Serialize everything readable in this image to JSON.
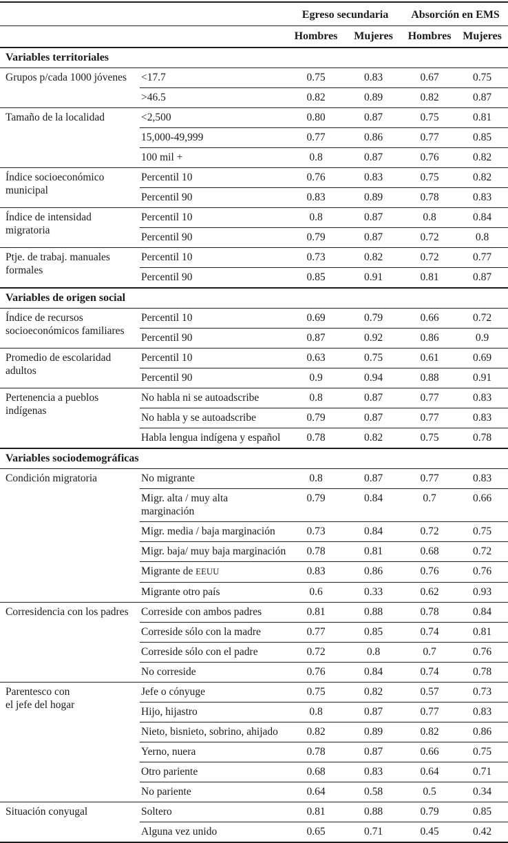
{
  "table": {
    "col_groups": [
      {
        "label": "Egreso secundaria"
      },
      {
        "label": "Absorción en EMS"
      }
    ],
    "sub_headers": [
      "Hombres",
      "Mujeres",
      "Hombres",
      "Mujeres"
    ],
    "sections": [
      {
        "title": "Variables territoriales",
        "groups": [
          {
            "category": "Grupos p/cada 1000 jóvenes",
            "rows": [
              {
                "label": "<17.7",
                "values": [
                  "0.75",
                  "0.83",
                  "0.67",
                  "0.75"
                ]
              },
              {
                "label": ">46.5",
                "values": [
                  "0.82",
                  "0.89",
                  "0.82",
                  "0.87"
                ]
              }
            ]
          },
          {
            "category": "Tamaño de la localidad",
            "rows": [
              {
                "label": "<2,500",
                "values": [
                  "0.80",
                  "0.87",
                  "0.75",
                  "0.81"
                ]
              },
              {
                "label": "15,000-49,999",
                "values": [
                  "0.77",
                  "0.86",
                  "0.77",
                  "0.85"
                ]
              },
              {
                "label": "100 mil +",
                "values": [
                  "0.8",
                  "0.87",
                  "0.76",
                  "0.82"
                ]
              }
            ]
          },
          {
            "category": "Índice socioeconómico\nmunicipal",
            "rows": [
              {
                "label": "Percentil 10",
                "values": [
                  "0.76",
                  "0.83",
                  "0.75",
                  "0.82"
                ]
              },
              {
                "label": "Percentil 90",
                "values": [
                  "0.83",
                  "0.89",
                  "0.78",
                  "0.83"
                ]
              }
            ]
          },
          {
            "category": "Índice de intensidad\nmigratoria",
            "rows": [
              {
                "label": "Percentil 10",
                "values": [
                  "0.8",
                  "0.87",
                  "0.8",
                  "0.84"
                ]
              },
              {
                "label": "Percentil 90",
                "values": [
                  "0.79",
                  "0.87",
                  "0.72",
                  "0.8"
                ]
              }
            ]
          },
          {
            "category": "Ptje. de trabaj. manuales\nformales",
            "rows": [
              {
                "label": "Percentil 10",
                "values": [
                  "0.73",
                  "0.82",
                  "0.72",
                  "0.77"
                ]
              },
              {
                "label": "Percentil 90",
                "values": [
                  "0.85",
                  "0.91",
                  "0.81",
                  "0.87"
                ]
              }
            ]
          }
        ]
      },
      {
        "title": "Variables de origen social",
        "groups": [
          {
            "category": "Índice de recursos\nsocioeconómicos familiares",
            "rows": [
              {
                "label": "Percentil 10",
                "values": [
                  "0.69",
                  "0.79",
                  "0.66",
                  "0.72"
                ]
              },
              {
                "label": "Percentil 90",
                "values": [
                  "0.87",
                  "0.92",
                  "0.86",
                  "0.9"
                ]
              }
            ]
          },
          {
            "category": "Promedio de escolaridad\nadultos",
            "rows": [
              {
                "label": "Percentil 10",
                "values": [
                  "0.63",
                  "0.75",
                  "0.61",
                  "0.69"
                ]
              },
              {
                "label": "Percentil 90",
                "values": [
                  "0.9",
                  "0.94",
                  "0.88",
                  "0.91"
                ]
              }
            ]
          },
          {
            "category": "Pertenencia a pueblos\nindígenas",
            "rows": [
              {
                "label": "No habla ni se autoadscribe",
                "values": [
                  "0.8",
                  "0.87",
                  "0.77",
                  "0.83"
                ]
              },
              {
                "label": "No habla y se autoadscribe",
                "values": [
                  "0.79",
                  "0.87",
                  "0.77",
                  "0.83"
                ]
              },
              {
                "label": "Habla lengua indígena y español",
                "values": [
                  "0.78",
                  "0.82",
                  "0.75",
                  "0.78"
                ]
              }
            ]
          }
        ]
      },
      {
        "title": "Variables sociodemográficas",
        "groups": [
          {
            "category": "Condición migratoria",
            "rows": [
              {
                "label": "No migrante",
                "values": [
                  "0.8",
                  "0.87",
                  "0.77",
                  "0.83"
                ]
              },
              {
                "label": "Migr. alta / muy alta\nmarginación",
                "values": [
                  "0.79",
                  "0.84",
                  "0.7",
                  "0.66"
                ]
              },
              {
                "label": "Migr. media / baja marginación",
                "values": [
                  "0.73",
                  "0.84",
                  "0.72",
                  "0.75"
                ]
              },
              {
                "label": "Migr. baja/ muy baja marginación",
                "values": [
                  "0.78",
                  "0.81",
                  "0.68",
                  "0.72"
                ]
              },
              {
                "label": "Migrante de EEUU",
                "values": [
                  "0.83",
                  "0.86",
                  "0.76",
                  "0.76"
                ]
              },
              {
                "label": "Migrante otro país",
                "values": [
                  "0.6",
                  "0.33",
                  "0.62",
                  "0.93"
                ]
              }
            ]
          },
          {
            "category": "Corresidencia con los padres",
            "rows": [
              {
                "label": "Correside con ambos padres",
                "values": [
                  "0.81",
                  "0.88",
                  "0.78",
                  "0.84"
                ]
              },
              {
                "label": "Correside sólo con la madre",
                "values": [
                  "0.77",
                  "0.85",
                  "0.74",
                  "0.81"
                ]
              },
              {
                "label": "Correside sólo con el padre",
                "values": [
                  "0.72",
                  "0.8",
                  "0.7",
                  "0.76"
                ]
              },
              {
                "label": "No correside",
                "values": [
                  "0.76",
                  "0.84",
                  "0.74",
                  "0.78"
                ]
              }
            ]
          },
          {
            "category": "Parentesco con\nel jefe del hogar",
            "rows": [
              {
                "label": "Jefe o cónyuge",
                "values": [
                  "0.75",
                  "0.82",
                  "0.57",
                  "0.73"
                ]
              },
              {
                "label": "Hijo, hijastro",
                "values": [
                  "0.8",
                  "0.87",
                  "0.77",
                  "0.83"
                ]
              },
              {
                "label": "Nieto, bisnieto, sobrino, ahijado",
                "values": [
                  "0.82",
                  "0.89",
                  "0.82",
                  "0.86"
                ]
              },
              {
                "label": "Yerno, nuera",
                "values": [
                  "0.78",
                  "0.87",
                  "0.66",
                  "0.75"
                ]
              },
              {
                "label": "Otro pariente",
                "values": [
                  "0.68",
                  "0.83",
                  "0.64",
                  "0.71"
                ]
              },
              {
                "label": "No pariente",
                "values": [
                  "0.64",
                  "0.58",
                  "0.5",
                  "0.34"
                ]
              }
            ]
          },
          {
            "category": "Situación conyugal",
            "rows": [
              {
                "label": "Soltero",
                "values": [
                  "0.81",
                  "0.88",
                  "0.79",
                  "0.85"
                ]
              },
              {
                "label": "Alguna vez unido",
                "values": [
                  "0.65",
                  "0.71",
                  "0.45",
                  "0.42"
                ]
              }
            ]
          }
        ]
      }
    ]
  }
}
